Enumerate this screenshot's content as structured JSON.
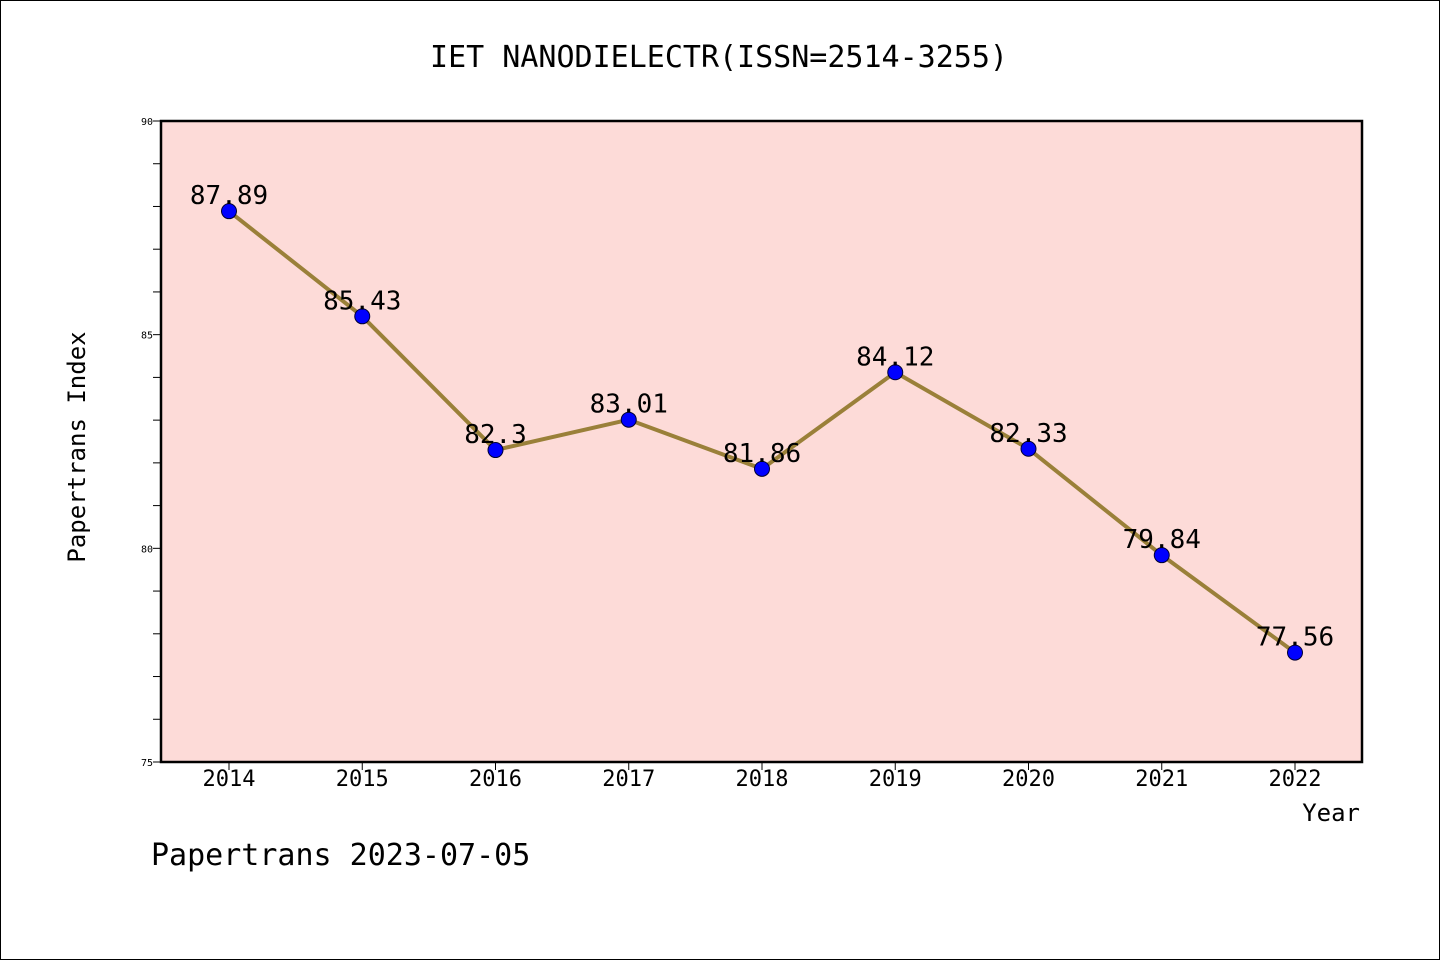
{
  "chart_data": {
    "type": "line",
    "title": "IET NANODIELECTR(ISSN=2514-3255)",
    "xlabel": "Year",
    "ylabel": "Papertrans Index",
    "footer": "Papertrans 2023-07-05",
    "categories": [
      "2014",
      "2015",
      "2016",
      "2017",
      "2018",
      "2019",
      "2020",
      "2021",
      "2022"
    ],
    "series": [
      {
        "values": [
          87.89,
          85.43,
          82.3,
          83.01,
          81.86,
          84.12,
          82.33,
          79.84,
          77.56
        ],
        "labels": [
          "87.89",
          "85.43",
          "82.3",
          "83.01",
          "81.86",
          "84.12",
          "82.33",
          "79.84",
          "77.56"
        ]
      }
    ],
    "ylim": [
      75,
      90
    ],
    "yticks": [
      75,
      80,
      85,
      90
    ],
    "grid": false,
    "colors": {
      "plot_bg": "#fddbd8",
      "line": "#9a8039",
      "marker": "#0000ff"
    }
  }
}
